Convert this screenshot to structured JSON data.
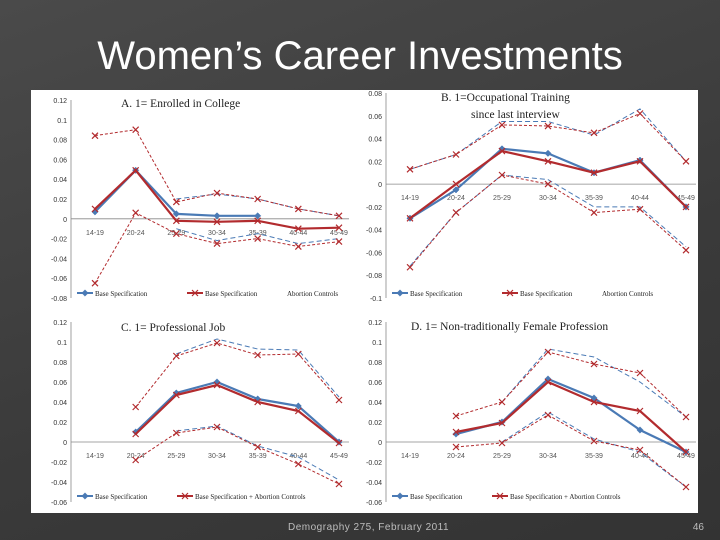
{
  "slide": {
    "title": "Women’s Career Investments",
    "footer": "Demography 275, February 2011",
    "page_number": "46"
  },
  "colors": {
    "base": "#4a7ab5",
    "abortion": "#b22b2e"
  },
  "chart_data": [
    {
      "type": "line",
      "title": "A. 1= Enrolled in College",
      "categories": [
        "14-19",
        "20-24",
        "25-29",
        "30-34",
        "35-39",
        "40-44",
        "45-49"
      ],
      "ylim": [
        -0.08,
        0.12
      ],
      "yticks": [
        "0.12",
        "0.1",
        "0.08",
        "0.06",
        "0.04",
        "0.02",
        "0",
        "-0.02",
        "-0.04",
        "-0.06",
        "-0.08"
      ],
      "series": [
        {
          "name": "Base Specification",
          "role": "base",
          "values": [
            0.007,
            0.049,
            0.005,
            0.003,
            0.003,
            null,
            null
          ]
        },
        {
          "name": "Base Specification + Abortion Controls",
          "role": "abortion",
          "values": [
            0.01,
            0.049,
            -0.002,
            -0.003,
            -0.002,
            -0.01,
            -0.009
          ]
        },
        {
          "name": "Base CI upper",
          "role": "base-ci",
          "values": [
            null,
            null,
            0.02,
            0.025,
            0.02,
            0.01,
            0.003
          ]
        },
        {
          "name": "Base CI lower",
          "role": "base-ci",
          "values": [
            null,
            null,
            -0.01,
            -0.022,
            -0.015,
            -0.025,
            -0.02
          ]
        },
        {
          "name": "Abortion CI upper",
          "role": "abortion-ci",
          "values": [
            0.084,
            0.09,
            0.017,
            0.026,
            0.02,
            0.01,
            0.003
          ]
        },
        {
          "name": "Abortion CI lower",
          "role": "abortion-ci",
          "values": [
            -0.065,
            0.006,
            -0.015,
            -0.025,
            -0.02,
            -0.028,
            -0.023
          ]
        }
      ],
      "legend": [
        "Base Specification",
        "Base Specification",
        "Abortion Controls"
      ]
    },
    {
      "type": "line",
      "title": "B. 1=Occupational Training",
      "subtitle": "since last interview",
      "categories": [
        "14-19",
        "20-24",
        "25-29",
        "30-34",
        "35-39",
        "40-44",
        "45-49"
      ],
      "ylim": [
        -0.1,
        0.08
      ],
      "yticks": [
        "0.08",
        "0.06",
        "0.04",
        "0.02",
        "0",
        "-0.02",
        "-0.04",
        "-0.06",
        "-0.08",
        "-0.1"
      ],
      "series": [
        {
          "name": "Base Specification",
          "role": "base",
          "values": [
            -0.03,
            -0.005,
            0.031,
            0.027,
            0.01,
            0.021,
            -0.02
          ]
        },
        {
          "name": "Base Specification + Abortion Controls",
          "role": "abortion",
          "values": [
            -0.03,
            0.0,
            0.029,
            0.02,
            0.01,
            0.02,
            -0.02
          ]
        },
        {
          "name": "Base CI upper",
          "role": "base-ci",
          "values": [
            0.013,
            0.026,
            0.055,
            0.055,
            0.043,
            0.066,
            0.02
          ]
        },
        {
          "name": "Base CI lower",
          "role": "base-ci",
          "values": [
            -0.072,
            -0.025,
            0.008,
            0.004,
            -0.02,
            -0.02,
            -0.055
          ]
        },
        {
          "name": "Abortion CI upper",
          "role": "abortion-ci",
          "values": [
            0.013,
            0.026,
            0.052,
            0.051,
            0.045,
            0.062,
            0.02
          ]
        },
        {
          "name": "Abortion CI lower",
          "role": "abortion-ci",
          "values": [
            -0.073,
            -0.025,
            0.008,
            0.0,
            -0.025,
            -0.022,
            -0.058
          ]
        }
      ],
      "legend": [
        "Base Specification",
        "Base Specification",
        "Abortion Controls"
      ]
    },
    {
      "type": "line",
      "title": "C. 1= Professional Job",
      "categories": [
        "14-19",
        "20-24",
        "25-29",
        "30-34",
        "35-39",
        "40-44",
        "45-49"
      ],
      "ylim": [
        -0.06,
        0.12
      ],
      "yticks": [
        "0.12",
        "0.1",
        "0.08",
        "0.06",
        "0.04",
        "0.02",
        "0",
        "-0.02",
        "-0.04",
        "-0.06"
      ],
      "series": [
        {
          "name": "Base Specification",
          "role": "base",
          "values": [
            null,
            0.01,
            0.049,
            0.06,
            0.043,
            0.036,
            0.0
          ]
        },
        {
          "name": "Base Specification + Abortion Controls",
          "role": "abortion",
          "values": [
            null,
            0.008,
            0.047,
            0.057,
            0.04,
            0.031,
            -0.001
          ]
        },
        {
          "name": "Base CI upper",
          "role": "base-ci",
          "values": [
            null,
            null,
            0.088,
            0.103,
            0.093,
            0.092,
            0.045
          ]
        },
        {
          "name": "Base CI lower",
          "role": "base-ci",
          "values": [
            null,
            null,
            0.011,
            0.016,
            -0.004,
            -0.015,
            -0.038
          ]
        },
        {
          "name": "Abortion CI upper",
          "role": "abortion-ci",
          "values": [
            null,
            0.035,
            0.086,
            0.099,
            0.087,
            0.088,
            0.042
          ]
        },
        {
          "name": "Abortion CI lower",
          "role": "abortion-ci",
          "values": [
            null,
            -0.018,
            0.009,
            0.015,
            -0.005,
            -0.022,
            -0.042
          ]
        }
      ],
      "legend": [
        "Base Specification",
        "Base Specification + Abortion Controls"
      ]
    },
    {
      "type": "line",
      "title": "D. 1= Non-traditionally Female Profession",
      "categories": [
        "14-19",
        "20-24",
        "25-29",
        "30-34",
        "35-39",
        "40-44",
        "45-49"
      ],
      "ylim": [
        -0.06,
        0.12
      ],
      "yticks": [
        "0.12",
        "0.1",
        "0.08",
        "0.06",
        "0.04",
        "0.02",
        "0",
        "-0.02",
        "-0.04",
        "-0.06"
      ],
      "series": [
        {
          "name": "Base Specification",
          "role": "base",
          "values": [
            null,
            0.008,
            0.02,
            0.063,
            0.044,
            0.012,
            -0.01
          ]
        },
        {
          "name": "Base Specification + Abortion Controls",
          "role": "abortion",
          "values": [
            null,
            0.01,
            0.019,
            0.06,
            0.04,
            0.031,
            -0.01
          ]
        },
        {
          "name": "Base CI upper",
          "role": "base-ci",
          "values": [
            null,
            null,
            0.04,
            0.093,
            0.085,
            0.06,
            0.025
          ]
        },
        {
          "name": "Base CI lower",
          "role": "base-ci",
          "values": [
            null,
            null,
            0.0,
            0.03,
            0.003,
            -0.01,
            -0.045
          ]
        },
        {
          "name": "Abortion CI upper",
          "role": "abortion-ci",
          "values": [
            null,
            0.026,
            0.04,
            0.09,
            0.078,
            0.069,
            0.025
          ]
        },
        {
          "name": "Abortion CI lower",
          "role": "abortion-ci",
          "values": [
            null,
            -0.005,
            -0.001,
            0.027,
            0.001,
            -0.008,
            -0.045
          ]
        }
      ],
      "legend": [
        "Base Specification",
        "Base Specification + Abortion Controls"
      ]
    }
  ]
}
